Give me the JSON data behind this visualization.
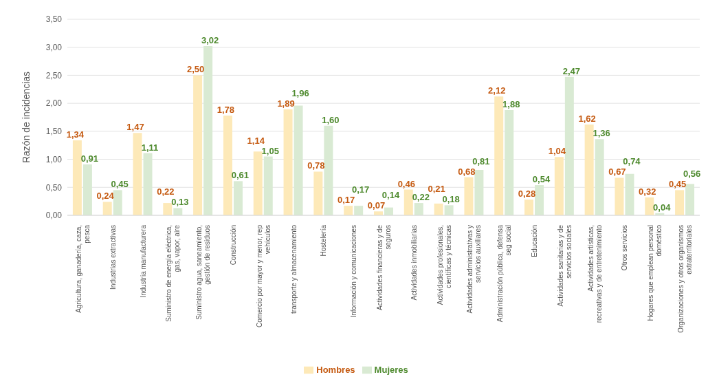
{
  "chart_data": {
    "type": "bar",
    "ylabel": "Razón de incidencias",
    "categories": [
      "Agricultura, ganadería, caza, pesca",
      "Industrias extractivas",
      "Industria manufacturera",
      "Suministro de energía eléctrica, gas, vapor, aire",
      "Suministro agua, saneamiento, gestión de residuos",
      "Construcción",
      "Comercio por mayor y menor, rep vehículos",
      "transporte y almacenamiento",
      "Hostelería",
      "Información y comunicaciones",
      "Actividades financieras y de seguros",
      "Actividades inmobiliarias",
      "Actividades profesionales, científicas y técnicas",
      "Actividades administrativas y servicios auxiliares",
      "Administración pública, defensa seg social",
      "Educación",
      "Actividades sanitarias y de servicios sociales",
      "Actividades artísticas, recreativas y de entretenimiento",
      "Otros servicios",
      "Hogares que emplean personal doméstico",
      "Organizaciones y otros organismos extraterritoriales"
    ],
    "series": [
      {
        "name": "Hombres",
        "color": "#fde9b8",
        "values": [
          1.34,
          0.24,
          1.47,
          0.22,
          2.5,
          1.78,
          1.14,
          1.89,
          0.78,
          0.17,
          0.07,
          0.46,
          0.21,
          0.68,
          2.12,
          0.28,
          1.04,
          1.62,
          0.67,
          0.32,
          0.45
        ],
        "value_labels": [
          "1,34",
          "0,24",
          "1,47",
          "0,22",
          "2,50",
          "1,78",
          "1,14",
          "1,89",
          "0,78",
          "0,17",
          "0,07",
          "0,46",
          "0,21",
          "0,68",
          "2,12",
          "0,28",
          "1,04",
          "1,62",
          "0,67",
          "0,32",
          "0,45"
        ]
      },
      {
        "name": "Mujeres",
        "color": "#d9ead3",
        "values": [
          0.91,
          0.45,
          1.11,
          0.13,
          3.02,
          0.61,
          1.05,
          1.96,
          1.6,
          0.17,
          0.14,
          0.22,
          0.18,
          0.81,
          1.88,
          0.54,
          2.47,
          1.36,
          0.74,
          0.04,
          0.56
        ],
        "value_labels": [
          "0,91",
          "0,45",
          "1,11",
          "0,13",
          "3,02",
          "0,61",
          "1,05",
          "1,96",
          "1,60",
          "0,17",
          "0,14",
          "0,22",
          "0,18",
          "0,81",
          "1,88",
          "0,54",
          "2,47",
          "1,36",
          "0,74",
          "0,04",
          "0,56"
        ]
      }
    ],
    "ylim": [
      0,
      3.5
    ],
    "yticks": [
      {
        "value": 0,
        "label": "0,00"
      },
      {
        "value": 0.5,
        "label": "0,50"
      },
      {
        "value": 1,
        "label": "1,00"
      },
      {
        "value": 1.5,
        "label": "1,50"
      },
      {
        "value": 2,
        "label": "2,00"
      },
      {
        "value": 2.5,
        "label": "2,50"
      },
      {
        "value": 3,
        "label": "3,00"
      },
      {
        "value": 3.5,
        "label": "3,50"
      }
    ],
    "grid": "y",
    "legend": "bottom"
  }
}
